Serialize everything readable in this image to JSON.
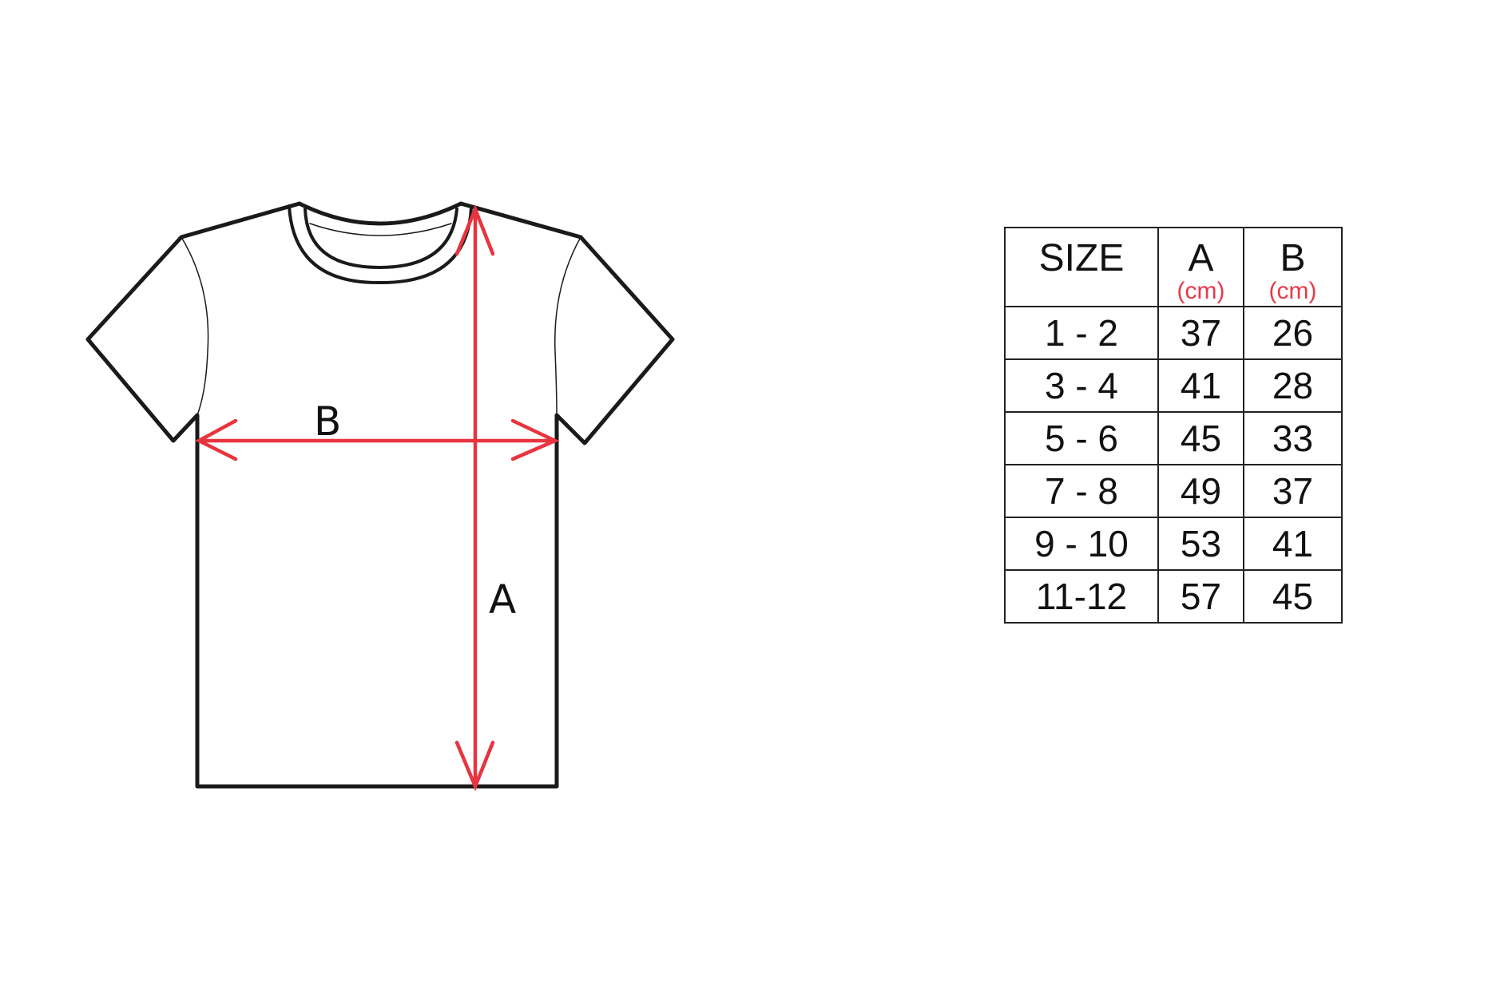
{
  "diagram": {
    "measure_labels": {
      "width": "B",
      "length": "A"
    },
    "colors": {
      "arrow": "#e8343f",
      "outline": "#1a1a1a",
      "unit_text": "#e8394a"
    }
  },
  "table": {
    "headers": [
      {
        "label": "SIZE",
        "unit": ""
      },
      {
        "label": "A",
        "unit": "(cm)"
      },
      {
        "label": "B",
        "unit": "(cm)"
      }
    ],
    "rows": [
      [
        "1 - 2",
        "37",
        "26"
      ],
      [
        "3 - 4",
        "41",
        "28"
      ],
      [
        "5 - 6",
        "45",
        "33"
      ],
      [
        "7 - 8",
        "49",
        "37"
      ],
      [
        "9 - 10",
        "53",
        "41"
      ],
      [
        "11-12",
        "57",
        "45"
      ]
    ]
  }
}
